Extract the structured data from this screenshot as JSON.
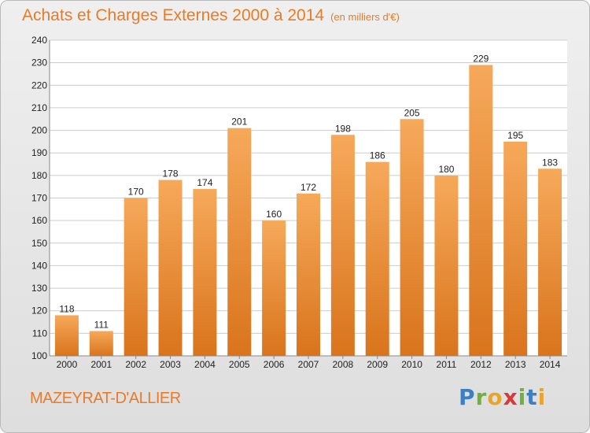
{
  "header": {
    "title": "Achats et Charges Externes 2000 à 2014",
    "subtitle": "(en milliers d'€)"
  },
  "footer": {
    "place": "MAZEYRAT-D'ALLIER",
    "logo": "Proxiti"
  },
  "colors": {
    "title": "#e87b28",
    "bar_top": "#f6a95a",
    "bar_bottom": "#d9741c",
    "grid": "#cccccc"
  },
  "chart_data": {
    "type": "bar",
    "title": "Achats et Charges Externes 2000 à 2014",
    "subtitle": "(en milliers d'€)",
    "categories": [
      "2000",
      "2001",
      "2002",
      "2003",
      "2004",
      "2005",
      "2006",
      "2007",
      "2008",
      "2009",
      "2010",
      "2011",
      "2012",
      "2013",
      "2014"
    ],
    "values": [
      118,
      111,
      170,
      178,
      174,
      201,
      160,
      172,
      198,
      186,
      205,
      180,
      229,
      195,
      183
    ],
    "ylim": [
      100,
      240
    ],
    "yticks": [
      100,
      110,
      120,
      130,
      140,
      150,
      160,
      170,
      180,
      190,
      200,
      210,
      220,
      230,
      240
    ],
    "grid": true,
    "xlabel": "",
    "ylabel": ""
  }
}
